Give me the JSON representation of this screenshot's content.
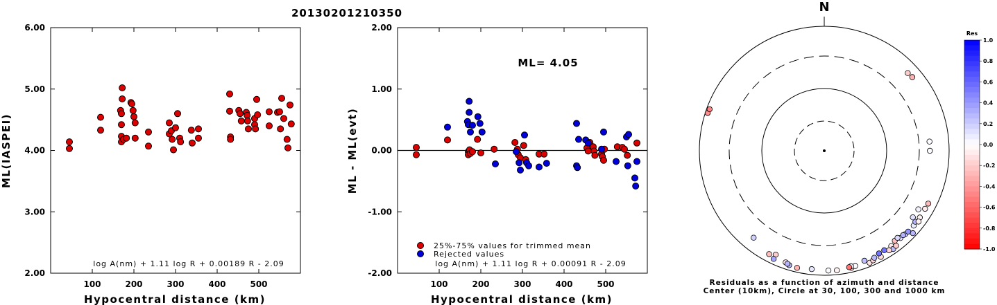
{
  "title": "20130201210350",
  "chart_data": [
    {
      "type": "scatter",
      "panel": "left",
      "xlabel": "Hypocentral distance (km)",
      "ylabel": "ML(IASPEI)",
      "xlim": [
        0,
        600
      ],
      "ylim": [
        2.0,
        6.0
      ],
      "xticks": [
        "100",
        "200",
        "300",
        "400",
        "500"
      ],
      "yticks": [
        "2.00",
        "3.00",
        "4.00",
        "5.00",
        "6.00"
      ],
      "formula": "log A(nm) + 1.11 log R + 0.00189 R - 2.09",
      "series": [
        {
          "color": "#dd0000",
          "points": [
            [
              45,
              4.14
            ],
            [
              45,
              4.03
            ],
            [
              120,
              4.54
            ],
            [
              120,
              4.33
            ],
            [
              168,
              4.65
            ],
            [
              170,
              4.6
            ],
            [
              172,
              5.02
            ],
            [
              172,
              4.84
            ],
            [
              170,
              4.42
            ],
            [
              170,
              4.23
            ],
            [
              170,
              4.14
            ],
            [
              175,
              4.18
            ],
            [
              182,
              4.2
            ],
            [
              193,
              4.78
            ],
            [
              195,
              4.76
            ],
            [
              198,
              4.65
            ],
            [
              200,
              4.55
            ],
            [
              203,
              4.2
            ],
            [
              203,
              4.45
            ],
            [
              235,
              4.3
            ],
            [
              235,
              4.07
            ],
            [
              285,
              4.45
            ],
            [
              285,
              4.27
            ],
            [
              290,
              4.32
            ],
            [
              292,
              4.18
            ],
            [
              295,
              4.01
            ],
            [
              300,
              4.37
            ],
            [
              305,
              4.6
            ],
            [
              310,
              4.2
            ],
            [
              312,
              4.14
            ],
            [
              338,
              4.33
            ],
            [
              340,
              4.12
            ],
            [
              355,
              4.35
            ],
            [
              355,
              4.2
            ],
            [
              430,
              4.92
            ],
            [
              430,
              4.64
            ],
            [
              432,
              4.22
            ],
            [
              432,
              4.18
            ],
            [
              452,
              4.65
            ],
            [
              455,
              4.6
            ],
            [
              458,
              4.48
            ],
            [
              470,
              4.62
            ],
            [
              472,
              4.57
            ],
            [
              473,
              4.48
            ],
            [
              475,
              4.35
            ],
            [
              490,
              4.52
            ],
            [
              490,
              4.42
            ],
            [
              492,
              4.35
            ],
            [
              495,
              4.83
            ],
            [
              497,
              4.58
            ],
            [
              525,
              4.63
            ],
            [
              525,
              4.4
            ],
            [
              545,
              4.62
            ],
            [
              550,
              4.63
            ],
            [
              552,
              4.35
            ],
            [
              555,
              4.85
            ],
            [
              560,
              4.52
            ],
            [
              568,
              4.18
            ],
            [
              570,
              4.04
            ],
            [
              575,
              4.74
            ],
            [
              578,
              4.43
            ]
          ]
        }
      ]
    },
    {
      "type": "scatter",
      "panel": "middle",
      "xlabel": "Hypocentral distance (km)",
      "ylabel": "ML - ML(evt)",
      "xlim": [
        0,
        600
      ],
      "ylim": [
        -2.0,
        2.0
      ],
      "xticks": [
        "100",
        "200",
        "300",
        "400",
        "500"
      ],
      "yticks": [
        "-2.00",
        "-1.00",
        "0.00",
        "1.00",
        "2.00"
      ],
      "annotation": "ML= 4.05",
      "legend": [
        "25%-75% values for trimmed mean",
        "Rejected values"
      ],
      "formula": "log A(nm) + 1.11 log R + 0.00091 R - 2.09",
      "series": [
        {
          "name": "25%-75% values for trimmed mean",
          "color": "#dd0000",
          "points": [
            [
              45,
              0.05
            ],
            [
              45,
              -0.07
            ],
            [
              120,
              0.17
            ],
            [
              170,
              -0.02
            ],
            [
              170,
              -0.07
            ],
            [
              173,
              0.01
            ],
            [
              175,
              -0.05
            ],
            [
              180,
              -0.02
            ],
            [
              192,
              0.18
            ],
            [
              200,
              -0.04
            ],
            [
              232,
              0.02
            ],
            [
              282,
              0.13
            ],
            [
              288,
              0.02
            ],
            [
              290,
              -0.07
            ],
            [
              295,
              -0.12
            ],
            [
              303,
              0.08
            ],
            [
              308,
              -0.15
            ],
            [
              340,
              -0.06
            ],
            [
              352,
              -0.06
            ],
            [
              455,
              0.04
            ],
            [
              458,
              -0.01
            ],
            [
              462,
              0.13
            ],
            [
              470,
              0.06
            ],
            [
              472,
              -0.01
            ],
            [
              474,
              -0.08
            ],
            [
              490,
              -0.06
            ],
            [
              492,
              -0.1
            ],
            [
              495,
              -0.16
            ],
            [
              497,
              0.02
            ],
            [
              528,
              0.06
            ],
            [
              540,
              0.05
            ],
            [
              545,
              0.02
            ],
            [
              552,
              -0.08
            ],
            [
              575,
              0.12
            ]
          ]
        },
        {
          "name": "Rejected values",
          "color": "#0000dd",
          "points": [
            [
              120,
              0.38
            ],
            [
              168,
              0.47
            ],
            [
              170,
              0.42
            ],
            [
              172,
              0.8
            ],
            [
              172,
              0.62
            ],
            [
              175,
              0.3
            ],
            [
              180,
              0.41
            ],
            [
              193,
              0.55
            ],
            [
              198,
              0.44
            ],
            [
              203,
              0.3
            ],
            [
              235,
              -0.22
            ],
            [
              285,
              -0.02
            ],
            [
              292,
              -0.2
            ],
            [
              295,
              -0.32
            ],
            [
              305,
              0.25
            ],
            [
              310,
              -0.2
            ],
            [
              315,
              -0.25
            ],
            [
              340,
              -0.27
            ],
            [
              358,
              -0.21
            ],
            [
              430,
              0.44
            ],
            [
              430,
              -0.25
            ],
            [
              432,
              -0.28
            ],
            [
              435,
              0.18
            ],
            [
              452,
              0.17
            ],
            [
              458,
              0.12
            ],
            [
              490,
              0.02
            ],
            [
              495,
              0.3
            ],
            [
              525,
              -0.18
            ],
            [
              550,
              0.22
            ],
            [
              553,
              -0.25
            ],
            [
              555,
              0.26
            ],
            [
              570,
              -0.45
            ],
            [
              572,
              -0.58
            ],
            [
              575,
              -0.18
            ]
          ]
        }
      ]
    },
    {
      "type": "scatter",
      "panel": "right",
      "north_label": "N",
      "caption_1": "Residuals as a function of azimuth and distance",
      "caption_2": "Center (10km), Circle at 30, 100, 300 and 1000 km",
      "colorbar_title": "Res",
      "colorbar_ticks": [
        "1.0",
        "0.8",
        "0.6",
        "0.4",
        "0.2",
        "0.0",
        "-0.2",
        "-0.4",
        "-0.6",
        "-0.8",
        "-1.0"
      ],
      "points_azimuth_distance": [
        [
          -58,
          570,
          0.05
        ],
        [
          -53,
          570,
          0.12
        ],
        [
          -47,
          860,
          0.28
        ],
        [
          -35,
          720,
          -0.08
        ],
        [
          -41,
          700,
          0.12
        ],
        [
          -44,
          710,
          0.18
        ],
        [
          -50,
          720,
          0.08
        ],
        [
          -35,
          830,
          0.25
        ],
        [
          -22,
          860,
          -0.1
        ],
        [
          -24,
          830,
          -0.15
        ],
        [
          -28,
          840,
          -0.12
        ],
        [
          -37,
          800,
          -0.2
        ],
        [
          -33,
          790,
          -0.15
        ],
        [
          -38,
          660,
          -0.25
        ],
        [
          -40,
          645,
          0.15
        ],
        [
          -43,
          690,
          0.3
        ],
        [
          -46,
          720,
          0.42
        ],
        [
          -52,
          690,
          0.3
        ],
        [
          -55,
          720,
          -0.05
        ],
        [
          -60,
          710,
          -0.08
        ],
        [
          -53,
          760,
          -0.05
        ],
        [
          -63,
          720,
          -0.28
        ],
        [
          -31,
          710,
          0.55
        ],
        [
          -28,
          715,
          0.55
        ],
        [
          -20,
          740,
          0.25
        ],
        [
          -25,
          770,
          0.28
        ],
        [
          -13,
          840,
          -0.28
        ],
        [
          -15,
          810,
          0.02
        ],
        [
          -13,
          785,
          0.05
        ],
        [
          -6,
          840,
          -0.05
        ],
        [
          17,
          820,
          0.3
        ],
        [
          19,
          770,
          -0.08
        ],
        [
          13,
          840,
          -0.3
        ],
        [
          28,
          740,
          -0.25
        ],
        [
          25,
          670,
          -0.2
        ],
        [
          -90,
          460,
          0.02
        ],
        [
          -95,
          460,
          0.02
        ],
        [
          -130,
          670,
          -0.3
        ],
        [
          -133,
          650,
          -0.2
        ],
        [
          25,
          810,
          0.35
        ],
        [
          18,
          795,
          0.3
        ],
        [
          108,
          910,
          -0.45
        ],
        [
          110,
          890,
          -0.5
        ],
        [
          39,
          600,
          0.18
        ],
        [
          -12,
          800,
          -0.55
        ],
        [
          6,
          800,
          0.1
        ],
        [
          -2,
          830,
          0.02
        ]
      ]
    }
  ]
}
